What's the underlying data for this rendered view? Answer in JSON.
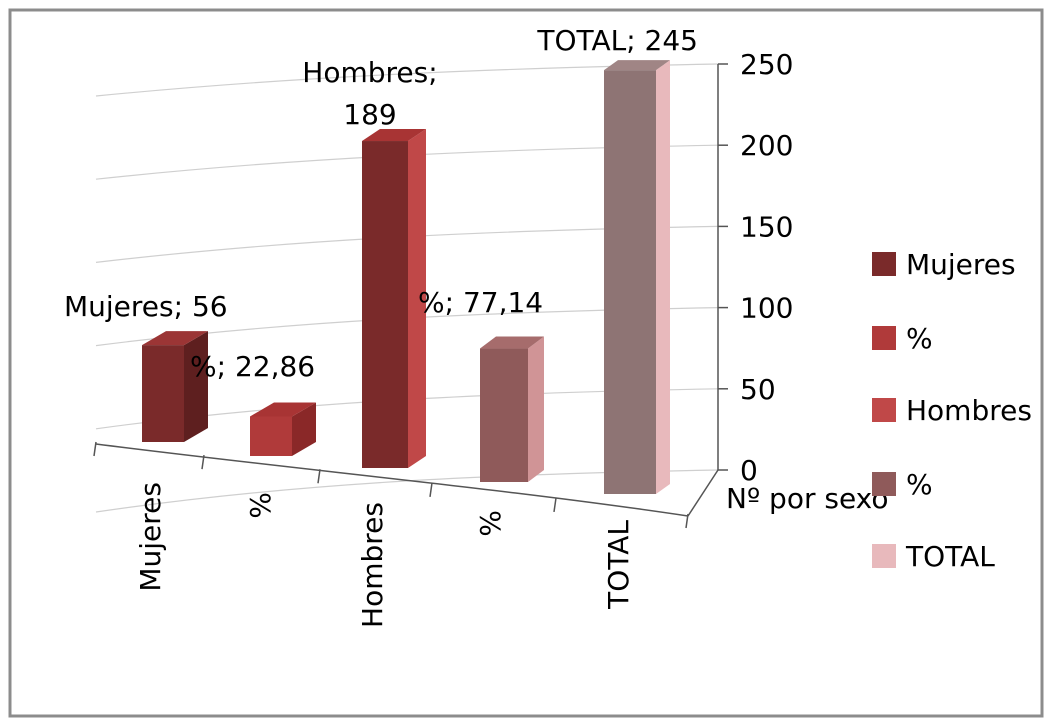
{
  "chart_data": {
    "type": "bar",
    "title": "",
    "categories": [
      "Mujeres",
      "%",
      "Hombres",
      "%",
      "TOTAL"
    ],
    "series": [
      {
        "name": "Mujeres",
        "values": [
          56,
          null,
          null,
          null,
          null
        ]
      },
      {
        "name": "%",
        "values": [
          null,
          22.86,
          null,
          null,
          null
        ]
      },
      {
        "name": "Hombres",
        "values": [
          null,
          null,
          189,
          null,
          null
        ]
      },
      {
        "name": "%",
        "values": [
          null,
          null,
          null,
          77.14,
          null
        ]
      },
      {
        "name": "TOTAL",
        "values": [
          null,
          null,
          null,
          null,
          245
        ]
      }
    ],
    "data_labels": [
      "Mujeres; 56",
      "%; 22,86",
      "Hombres; 189",
      "%; 77,14",
      "TOTAL; 245"
    ],
    "series_axis_label": "Nº por sexo",
    "yticks": [
      "0",
      "50",
      "100",
      "150",
      "200",
      "250"
    ],
    "ylim": [
      0,
      250
    ],
    "grid": true,
    "legend_position": "right",
    "three_d": true
  },
  "colors": {
    "border": "#8c8c8c",
    "gridline": "#cfcfcf",
    "series": [
      "#7a2a2a",
      "#b03a3a",
      "#c04848",
      "#8f5a5a",
      "#e8b9bc"
    ],
    "total_front": "#8e7474",
    "total_side": "#e8b9bc"
  }
}
